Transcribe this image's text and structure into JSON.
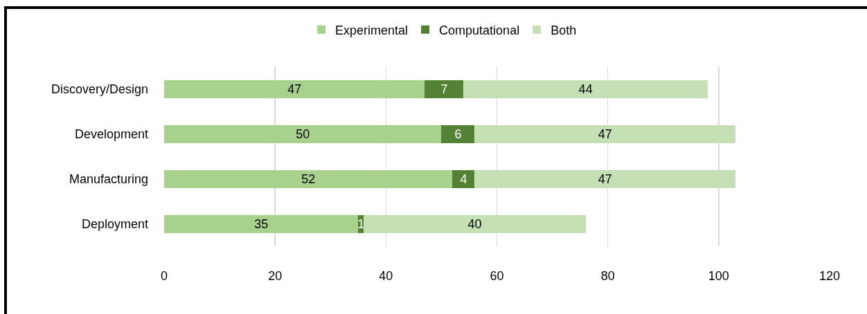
{
  "chart_data": {
    "type": "bar",
    "orientation": "horizontal",
    "stacked": true,
    "categories": [
      "Discovery/Design",
      "Development",
      "Manufacturing",
      "Deployment"
    ],
    "series": [
      {
        "name": "Experimental",
        "color": "#a9d18e",
        "values": [
          47,
          50,
          52,
          35
        ]
      },
      {
        "name": "Computational",
        "color": "#548235",
        "values": [
          7,
          6,
          4,
          1
        ]
      },
      {
        "name": "Both",
        "color": "#c5e0b4",
        "values": [
          44,
          47,
          47,
          40
        ]
      }
    ],
    "xlim": [
      0,
      120
    ],
    "xticks": [
      0,
      20,
      40,
      60,
      80,
      100,
      120
    ],
    "grid": "x",
    "legend": "top",
    "data_labels": true
  }
}
